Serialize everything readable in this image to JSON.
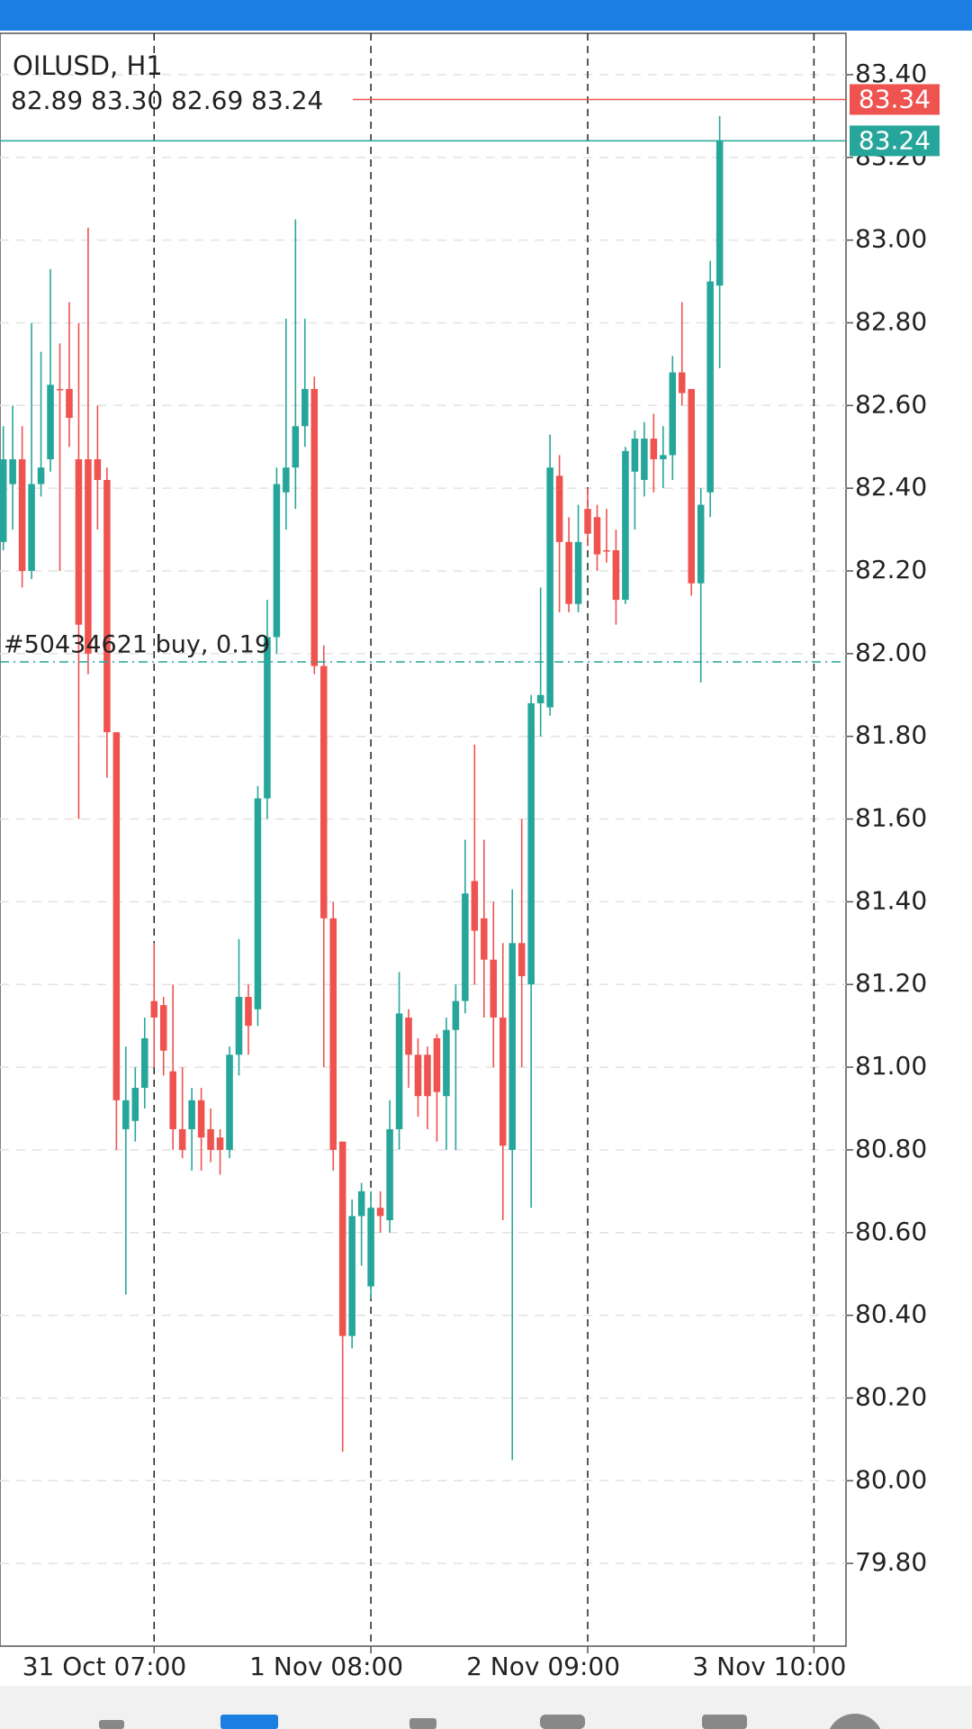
{
  "chart_data": {
    "type": "candlestick",
    "title": "OILUSD, H1",
    "ohlc_text": "82.89 83.30 82.69 83.24",
    "up_color": "#26a69a",
    "down_color": "#ef5350",
    "open": [
      82.27,
      82.41,
      82.47,
      82.2,
      82.41,
      82.47,
      82.64,
      82.64,
      82.47,
      82.47,
      82.47,
      82.42,
      81.81,
      80.85,
      80.87,
      80.95,
      81.16,
      81.15,
      80.99,
      80.85,
      80.85,
      80.92,
      80.85,
      80.83,
      80.8,
      81.03,
      81.17,
      81.14,
      81.65,
      82.04,
      82.39,
      82.45,
      82.55,
      82.64,
      81.97,
      81.36,
      80.82,
      80.35,
      80.64,
      80.47,
      80.66,
      80.63,
      80.85,
      81.12,
      81.03,
      81.03,
      81.07,
      80.93,
      81.09,
      81.16,
      81.45,
      81.36,
      81.26,
      81.12,
      80.8,
      81.3,
      81.2,
      81.88,
      81.87,
      82.43,
      82.27,
      82.12,
      82.35,
      82.33,
      82.25,
      82.25,
      82.13,
      82.44,
      82.42,
      82.52,
      82.47,
      82.48,
      82.68,
      82.64,
      82.17,
      82.39,
      82.89
    ],
    "high": [
      82.55,
      82.6,
      82.55,
      82.8,
      82.73,
      82.93,
      82.75,
      82.85,
      82.8,
      83.03,
      82.6,
      82.45,
      81.81,
      81.05,
      81.0,
      81.12,
      81.3,
      81.17,
      81.2,
      81.0,
      80.95,
      80.95,
      80.9,
      80.85,
      81.05,
      81.31,
      81.2,
      81.68,
      82.13,
      82.45,
      82.81,
      83.05,
      82.81,
      82.67,
      82.02,
      81.4,
      80.82,
      80.68,
      80.72,
      80.7,
      80.7,
      80.92,
      81.23,
      81.14,
      81.07,
      81.05,
      81.08,
      81.12,
      81.2,
      81.55,
      81.78,
      81.55,
      81.4,
      81.3,
      81.43,
      81.6,
      81.9,
      82.16,
      82.53,
      82.48,
      82.33,
      82.36,
      82.4,
      82.36,
      82.35,
      82.3,
      82.5,
      82.54,
      82.56,
      82.58,
      82.55,
      82.72,
      82.85,
      82.64,
      82.4,
      82.95,
      83.3
    ],
    "low": [
      82.25,
      82.3,
      82.16,
      82.18,
      82.38,
      82.44,
      82.2,
      82.5,
      81.6,
      81.95,
      82.3,
      81.7,
      80.8,
      80.45,
      80.82,
      80.9,
      81.0,
      80.98,
      80.8,
      80.78,
      80.75,
      80.75,
      80.77,
      80.74,
      80.78,
      80.98,
      81.03,
      81.1,
      81.6,
      82.0,
      82.3,
      82.35,
      82.5,
      81.95,
      81.0,
      80.75,
      80.07,
      80.32,
      80.52,
      80.44,
      80.6,
      80.6,
      80.8,
      80.95,
      80.88,
      80.85,
      80.82,
      80.8,
      80.8,
      81.13,
      81.2,
      81.12,
      81.0,
      80.63,
      80.05,
      81.0,
      80.66,
      81.8,
      81.85,
      82.1,
      82.1,
      82.1,
      82.26,
      82.2,
      82.22,
      82.07,
      82.12,
      82.3,
      82.38,
      82.39,
      82.4,
      82.42,
      82.6,
      82.14,
      81.93,
      82.33,
      82.69
    ],
    "close": [
      82.47,
      82.47,
      82.2,
      82.41,
      82.45,
      82.65,
      82.64,
      82.57,
      82.07,
      82.0,
      82.42,
      81.81,
      80.92,
      80.92,
      80.95,
      81.07,
      81.12,
      81.04,
      80.85,
      80.8,
      80.92,
      80.83,
      80.8,
      80.8,
      81.03,
      81.17,
      81.1,
      81.65,
      82.04,
      82.41,
      82.45,
      82.55,
      82.64,
      81.97,
      81.36,
      80.8,
      80.35,
      80.64,
      80.7,
      80.66,
      80.64,
      80.85,
      81.13,
      81.03,
      80.93,
      80.93,
      80.94,
      81.09,
      81.16,
      81.42,
      81.33,
      81.26,
      81.12,
      80.81,
      81.3,
      81.22,
      81.88,
      81.9,
      82.45,
      82.27,
      82.12,
      82.27,
      82.29,
      82.24,
      82.25,
      82.13,
      82.49,
      82.52,
      82.52,
      82.47,
      82.48,
      82.68,
      82.63,
      82.17,
      82.36,
      82.9,
      83.24
    ],
    "xlim": [
      -0.35,
      89.4
    ],
    "xticks": [
      {
        "value": 16,
        "label": "31 Oct 07:00"
      },
      {
        "value": 39,
        "label": "1 Nov 08:00"
      },
      {
        "value": 62,
        "label": "2 Nov 09:00"
      },
      {
        "value": 86,
        "label": "3 Nov 10:00"
      }
    ],
    "ylim": [
      79.6,
      83.5
    ],
    "yticks": [
      {
        "value": 79.8,
        "label": "79.80"
      },
      {
        "value": 80,
        "label": "80.00"
      },
      {
        "value": 80.2,
        "label": "80.20"
      },
      {
        "value": 80.4,
        "label": "80.40"
      },
      {
        "value": 80.6,
        "label": "80.60"
      },
      {
        "value": 80.8,
        "label": "80.80"
      },
      {
        "value": 81,
        "label": "81.00"
      },
      {
        "value": 81.2,
        "label": "81.20"
      },
      {
        "value": 81.4,
        "label": "81.40"
      },
      {
        "value": 81.6,
        "label": "81.60"
      },
      {
        "value": 81.8,
        "label": "81.80"
      },
      {
        "value": 82,
        "label": "82.00"
      },
      {
        "value": 82.2,
        "label": "82.20"
      },
      {
        "value": 82.4,
        "label": "82.40"
      },
      {
        "value": 82.6,
        "label": "82.60"
      },
      {
        "value": 82.8,
        "label": "82.80"
      },
      {
        "value": 83,
        "label": "83.00"
      },
      {
        "value": 83.2,
        "label": "83.20"
      },
      {
        "value": 83.4,
        "label": "83.40"
      }
    ],
    "grid": true,
    "ask": {
      "value": 83.34,
      "color": "#ef5350"
    },
    "bid": {
      "value": 83.24,
      "color": "#26a69a"
    },
    "order": {
      "label": "#50434621 buy, 0.19",
      "value": 81.98,
      "color": "#26a69a"
    }
  }
}
